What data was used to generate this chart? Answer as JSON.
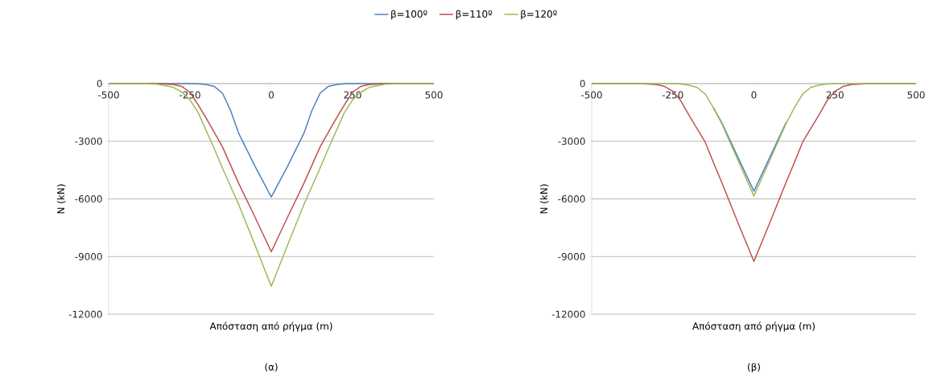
{
  "chart_data": [
    {
      "type": "line",
      "title": "(α)",
      "xlabel": "Απόσταση από ρήγμα (m)",
      "ylabel": "N (kN)",
      "legend": "top",
      "grid": "y",
      "xlim": [
        -500,
        500
      ],
      "ylim": [
        -12000,
        0
      ],
      "xticks": [
        -500,
        -250,
        0,
        250,
        500
      ],
      "yticks": [
        -12000,
        -9000,
        -6000,
        -3000,
        0
      ],
      "x": [
        -500,
        -400,
        -350,
        -300,
        -275,
        -250,
        -225,
        -200,
        -175,
        -150,
        -125,
        -100,
        -50,
        0,
        50,
        100,
        125,
        150,
        175,
        200,
        225,
        250,
        275,
        300,
        350,
        400,
        500
      ],
      "series": [
        {
          "name": "β=100º",
          "color": "#4f81bd",
          "values": [
            0,
            0,
            0,
            0,
            0,
            0,
            -10,
            -50,
            -150,
            -500,
            -1400,
            -2600,
            -4300,
            -5900,
            -4300,
            -2600,
            -1400,
            -500,
            -150,
            -50,
            -10,
            0,
            0,
            0,
            0,
            0,
            0
          ]
        },
        {
          "name": "β=110º",
          "color": "#c0504d",
          "values": [
            0,
            0,
            0,
            -50,
            -150,
            -450,
            -1100,
            -1800,
            -2550,
            -3300,
            -4250,
            -5200,
            -6950,
            -8750,
            -6950,
            -5200,
            -4250,
            -3300,
            -2550,
            -1800,
            -1100,
            -450,
            -150,
            -50,
            0,
            0,
            0
          ]
        },
        {
          "name": "β=120º",
          "color": "#9bbb59",
          "values": [
            0,
            0,
            -30,
            -200,
            -450,
            -850,
            -1500,
            -2450,
            -3400,
            -4400,
            -5350,
            -6300,
            -8400,
            -10550,
            -8400,
            -6300,
            -5350,
            -4400,
            -3400,
            -2450,
            -1500,
            -850,
            -450,
            -200,
            -30,
            0,
            0
          ]
        }
      ]
    },
    {
      "type": "line",
      "title": "(β)",
      "xlabel": "Απόσταση από ρήγμα (m)",
      "ylabel": "N (kN)",
      "grid": "y",
      "xlim": [
        -500,
        500
      ],
      "ylim": [
        -12000,
        0
      ],
      "xticks": [
        -500,
        -250,
        0,
        250,
        500
      ],
      "yticks": [
        -12000,
        -9000,
        -6000,
        -3000,
        0
      ],
      "x": [
        -500,
        -400,
        -350,
        -300,
        -275,
        -250,
        -225,
        -200,
        -175,
        -150,
        -125,
        -100,
        -50,
        0,
        50,
        100,
        125,
        150,
        175,
        200,
        225,
        250,
        275,
        300,
        350,
        400,
        500
      ],
      "series": [
        {
          "color": "#4f81bd",
          "values": [
            null,
            null,
            null,
            null,
            null,
            null,
            null,
            null,
            null,
            null,
            -1250,
            -2000,
            -3800,
            -5600,
            -3800,
            -2000,
            null,
            null,
            null,
            null,
            null,
            null,
            null,
            null,
            null,
            null,
            null
          ]
        },
        {
          "color": "#c0504d",
          "values": [
            0,
            0,
            0,
            -50,
            -150,
            -400,
            -900,
            -1650,
            -2350,
            -3050,
            -4100,
            -5100,
            -7200,
            -9250,
            -7200,
            -5100,
            -4100,
            -3050,
            -2350,
            -1650,
            -900,
            -400,
            -150,
            -50,
            0,
            0,
            0
          ]
        },
        {
          "color": "#9bbb59",
          "values": [
            0,
            0,
            0,
            0,
            0,
            0,
            -20,
            -80,
            -200,
            -550,
            -1250,
            -2050,
            -3950,
            -5850,
            -3950,
            -2050,
            -1250,
            -550,
            -200,
            -80,
            -20,
            0,
            0,
            0,
            0,
            0,
            0
          ]
        }
      ]
    }
  ]
}
